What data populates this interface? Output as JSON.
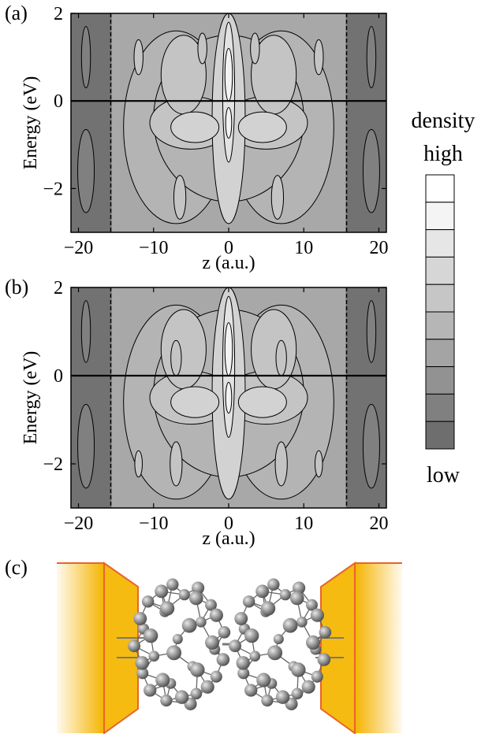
{
  "chart_data": [
    {
      "type": "heatmap",
      "panel_label": "(a)",
      "xlabel": "z (a.u.)",
      "ylabel": "Energy (eV)",
      "xlim": [
        -21,
        21
      ],
      "ylim": [
        -3,
        2
      ],
      "xticks": [
        -20,
        -10,
        0,
        10,
        20
      ],
      "yticks": [
        -2,
        0,
        2
      ],
      "ytick_labels": [
        "−2",
        "0",
        "2"
      ],
      "xtick_labels": [
        "−20",
        "−10",
        "0",
        "10",
        "20"
      ],
      "fermi_level": 0,
      "dashed_boundaries": [
        -15.7,
        15.7
      ]
    },
    {
      "type": "heatmap",
      "panel_label": "(b)",
      "xlabel": "z (a.u.)",
      "ylabel": "Energy (eV)",
      "xlim": [
        -21,
        21
      ],
      "ylim": [
        -3,
        2
      ],
      "xticks": [
        -20,
        -10,
        0,
        10,
        20
      ],
      "yticks": [
        -2,
        0,
        2
      ],
      "ytick_labels": [
        "−2",
        "0",
        "2"
      ],
      "xtick_labels": [
        "−20",
        "−10",
        "0",
        "10",
        "20"
      ],
      "fermi_level": 0,
      "dashed_boundaries": [
        -15.7,
        15.7
      ]
    }
  ],
  "colorbar": {
    "title": "density",
    "high_label": "high",
    "low_label": "low",
    "levels": [
      "#ffffff",
      "#f4f4f4",
      "#e6e6e6",
      "#d6d6d6",
      "#c6c6c6",
      "#b6b6b6",
      "#a4a4a4",
      "#929292",
      "#808080",
      "#6e6e6e"
    ]
  },
  "panel_c": {
    "label": "(c)"
  },
  "colors": {
    "electrode_dark": "#f2b500",
    "electrode_light": "#fff6d0",
    "electrode_edge": "#e8642a",
    "atom": "#8a8a8a"
  }
}
